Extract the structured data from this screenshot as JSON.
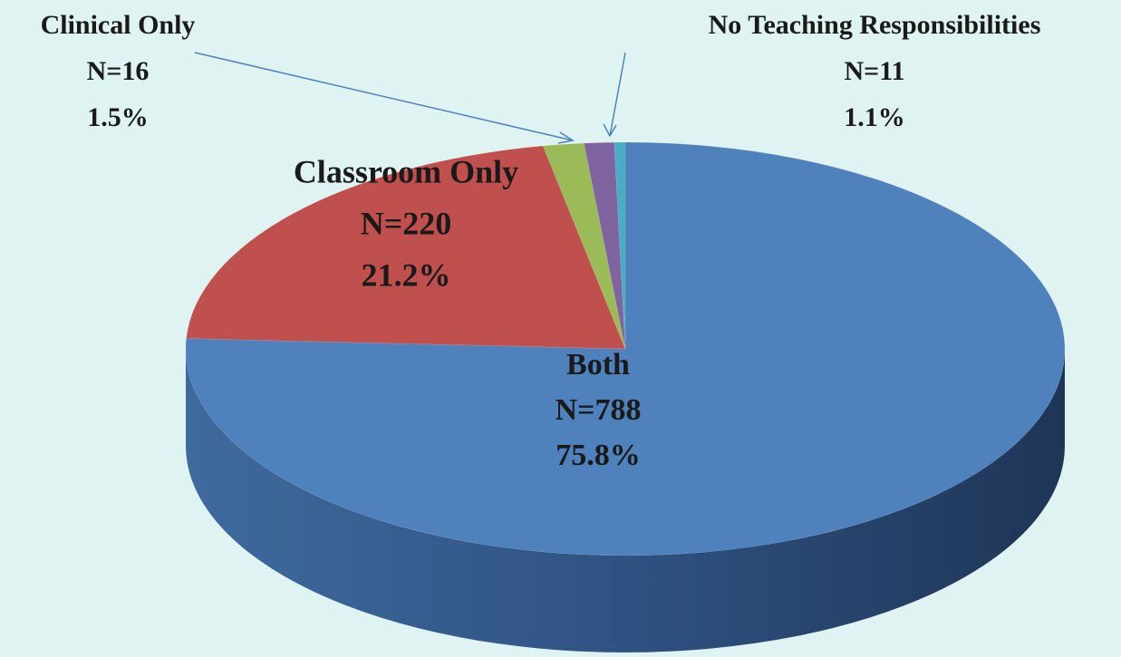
{
  "chart_data": {
    "type": "pie3d",
    "categories": [
      "Both",
      "Classroom Only",
      "Clinical Only",
      "No Teaching Responsibilities",
      null
    ],
    "values": [
      75.8,
      21.2,
      1.5,
      1.1,
      0.4
    ],
    "value_labels": [
      "75.8%",
      "21.2%",
      "1.5%",
      "1.1%",
      null
    ],
    "count_labels": [
      "N=788",
      "N=220",
      "N=16",
      "N=11",
      null
    ],
    "colors": [
      "#4f81bd",
      "#c0504d",
      "#9bbb59",
      "#8064a2",
      "#4bacc6"
    ]
  }
}
